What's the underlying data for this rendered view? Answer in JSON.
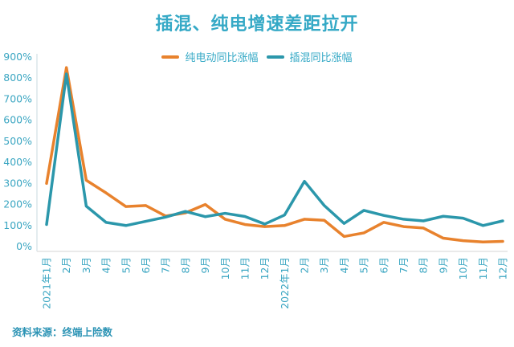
{
  "source_note": "资料来源：终端上险数",
  "colors": {
    "background": "#ffffff",
    "title_text": "#35a9c6",
    "axis_text": "#3ba6c2",
    "pure_ev_line": "#e8822d",
    "phev_line": "#2b97ab",
    "y_axis_line": "#d9e3e8",
    "x_axis_line": "#e3e3e3"
  },
  "chart_data": {
    "type": "line",
    "title": "插混、纯电增速差距拉开",
    "categories": [
      "2021年1月",
      "2月",
      "3月",
      "4月",
      "5月",
      "6月",
      "7月",
      "8月",
      "9月",
      "10月",
      "11月",
      "12月",
      "2022年1月",
      "2月",
      "3月",
      "4月",
      "5月",
      "6月",
      "7月",
      "8月",
      "9月",
      "10月",
      "11月",
      "12月"
    ],
    "series": [
      {
        "name": "纯电动同比涨幅",
        "color": "#e8822d",
        "values": [
          300,
          850,
          315,
          255,
          190,
          195,
          145,
          160,
          200,
          130,
          105,
          95,
          100,
          130,
          125,
          48,
          65,
          115,
          95,
          88,
          40,
          28,
          22,
          25
        ]
      },
      {
        "name": "插混同比涨幅",
        "color": "#2b97ab",
        "values": [
          105,
          820,
          192,
          115,
          100,
          120,
          140,
          167,
          142,
          158,
          143,
          107,
          150,
          310,
          195,
          110,
          172,
          148,
          130,
          122,
          144,
          135,
          100,
          122
        ]
      }
    ],
    "ylim": [
      0,
      900
    ],
    "y_tick_labels": [
      "0%",
      "100%",
      "200%",
      "300%",
      "400%",
      "500%",
      "600%",
      "700%",
      "800%",
      "900%"
    ],
    "x_label_rotation": -90,
    "grid": false,
    "legend_position": "top"
  }
}
